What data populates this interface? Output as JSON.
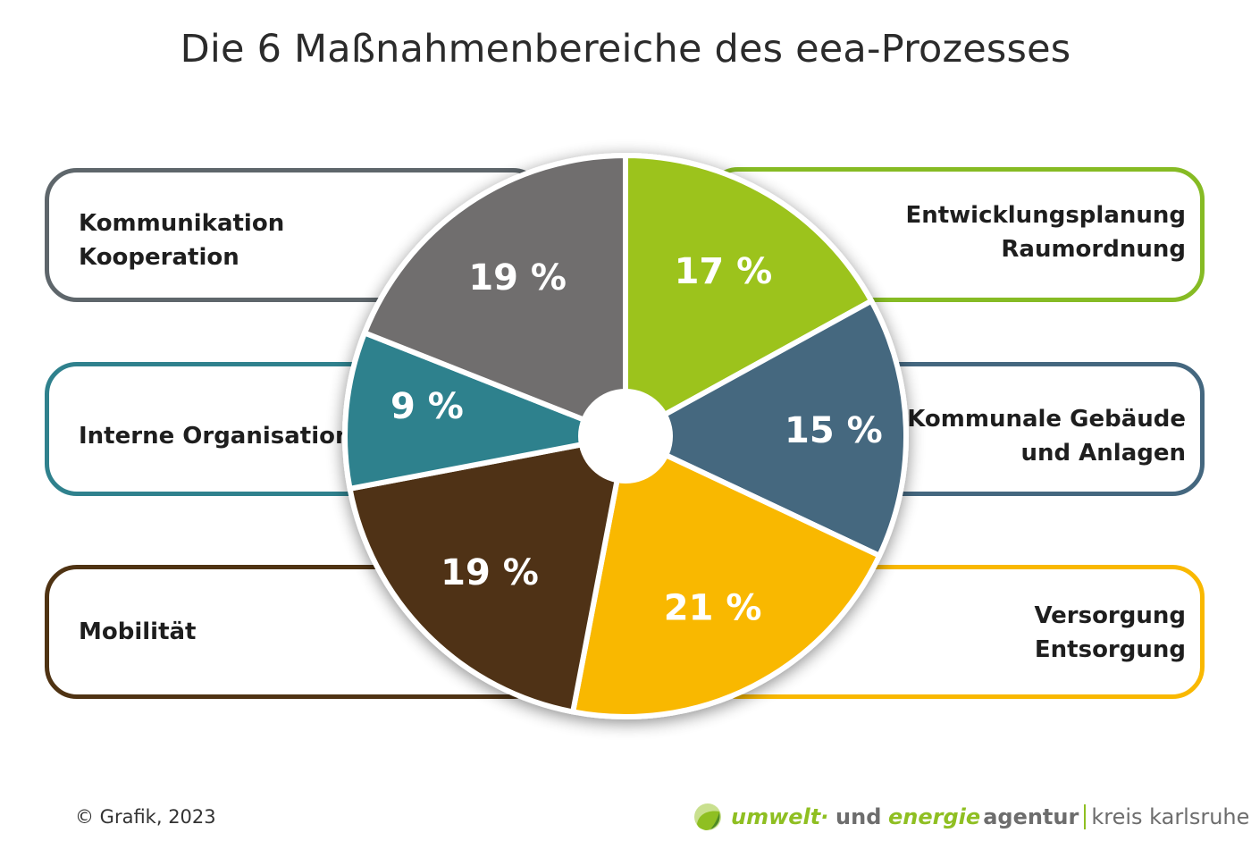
{
  "title": "Die 6 Maßnahmenbereiche des eea-Prozesses",
  "chart_data": {
    "type": "pie",
    "title": "Die 6 Maßnahmenbereiche des eea-Prozesses",
    "unit": "%",
    "slices": [
      {
        "label": "Entwicklungsplanung Raumordnung",
        "lines": [
          "Entwicklungsplanung",
          "Raumordnung"
        ],
        "value": 17,
        "value_label": "17 %",
        "color": "#9cc31d"
      },
      {
        "label": "Kommunale Gebäude und Anlagen",
        "lines": [
          "Kommunale Gebäude",
          "und Anlagen"
        ],
        "value": 15,
        "value_label": "15 %",
        "color": "#44677f"
      },
      {
        "label": "Versorgung Entsorgung",
        "lines": [
          "Versorgung",
          "Entsorgung"
        ],
        "value": 21,
        "value_label": "21 %",
        "color": "#f9b800"
      },
      {
        "label": "Mobilität",
        "lines": [
          "Mobilität"
        ],
        "value": 19,
        "value_label": "19 %",
        "color": "#4f3313"
      },
      {
        "label": "Interne Organisation",
        "lines": [
          "Interne Organisation"
        ],
        "value": 9,
        "value_label": "9 %",
        "color": "#2f818d"
      },
      {
        "label": "Kommunikation Kooperation",
        "lines": [
          "Kommunikation",
          "Kooperation"
        ],
        "value": 19,
        "value_label": "19 %",
        "color": "#6f6e6e"
      }
    ],
    "start_angle": "top",
    "direction": "clockwise",
    "donut_hole": true
  },
  "box_colors": {
    "kommunikation": "#5e666b",
    "entwicklung": "#86bb24",
    "interne": "#2f818d",
    "kommunale": "#44677f",
    "mobilitaet": "#4f3313",
    "versorgung": "#f9b800"
  },
  "footer": {
    "copyright": "© Grafik, 2023",
    "logo": {
      "part1": "umwelt",
      "dot": "·",
      "part2": "und",
      "part3": "energie",
      "part4": "agentur",
      "part5": "kreis karlsruhe"
    }
  }
}
